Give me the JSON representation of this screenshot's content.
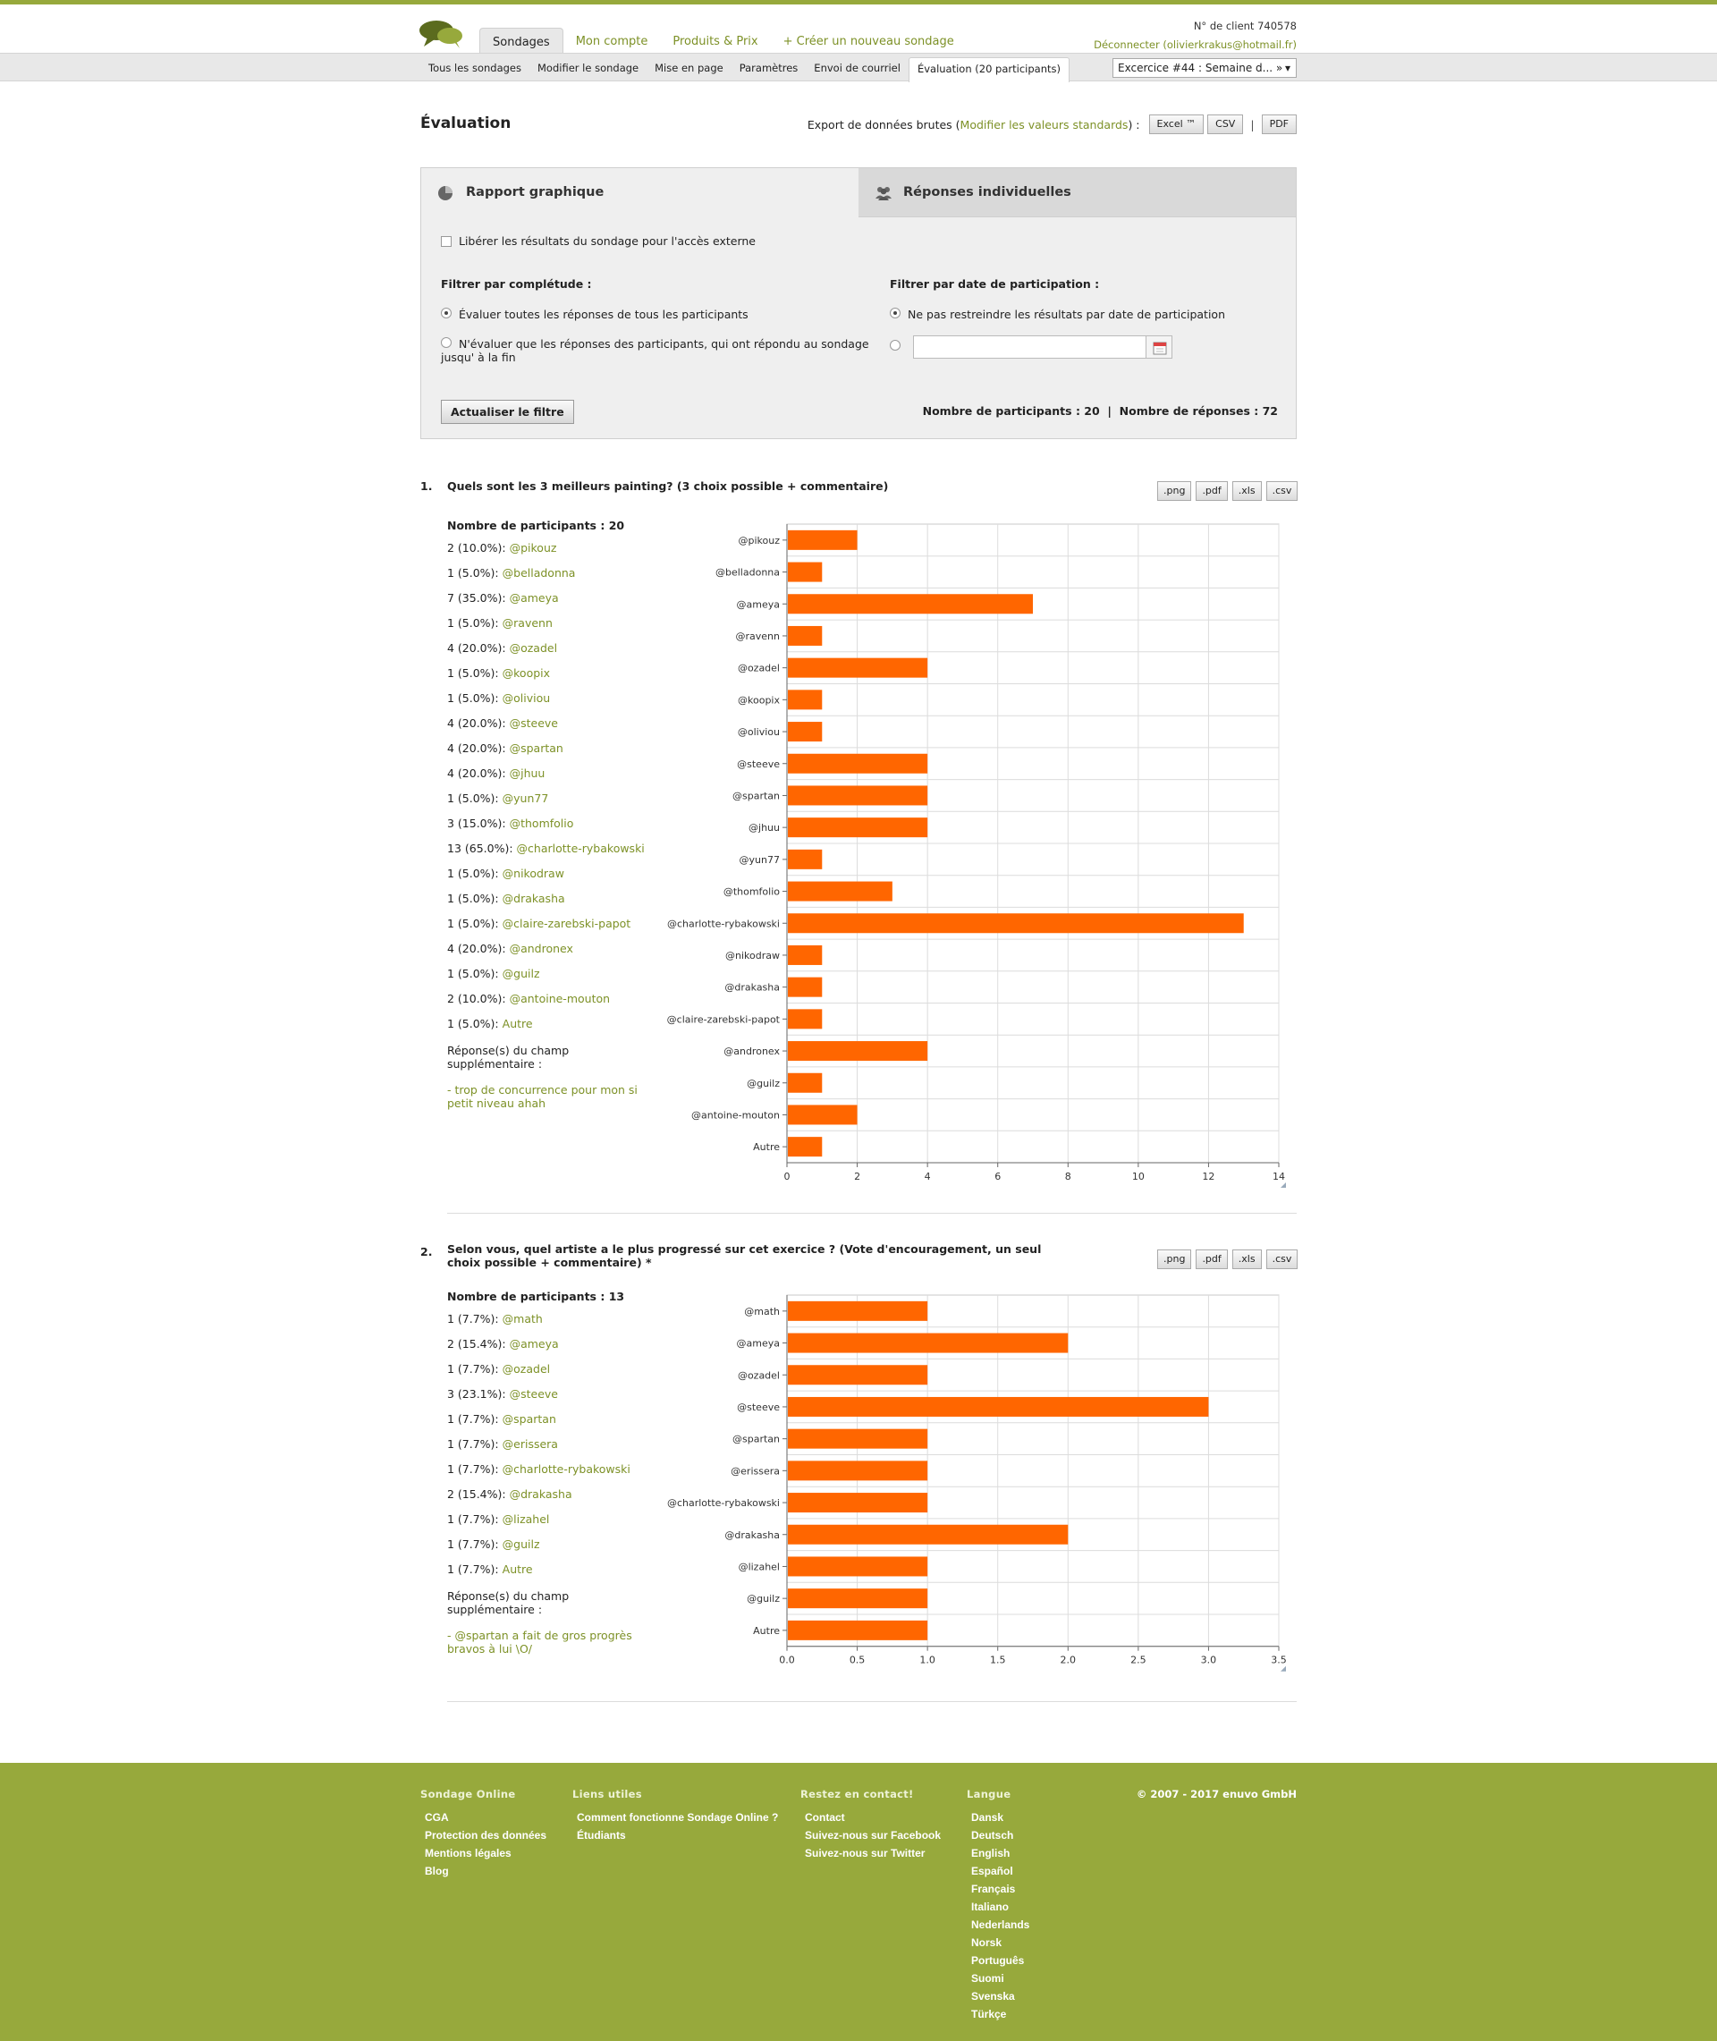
{
  "header": {
    "tabs": [
      {
        "label": "Sondages",
        "active": true
      },
      {
        "label": "Mon compte",
        "active": false
      },
      {
        "label": "Produits & Prix",
        "active": false
      },
      {
        "label": "+ Créer un nouveau sondage",
        "active": false
      }
    ],
    "client_id": "N° de client 740578",
    "logout": "Déconnecter (olivierkrakus@hotmail.fr)"
  },
  "subnav": {
    "tabs": [
      {
        "label": "Tous les sondages",
        "active": false
      },
      {
        "label": "Modifier le sondage",
        "active": false
      },
      {
        "label": "Mise en page",
        "active": false
      },
      {
        "label": "Paramètres",
        "active": false
      },
      {
        "label": "Envoi de courriel",
        "active": false
      },
      {
        "label": "Évaluation (20 participants)",
        "active": true
      }
    ],
    "survey_select": "Excercice #44 : Semaine d... »"
  },
  "page": {
    "title": "Évaluation",
    "export_label": "Export de données brutes (",
    "export_link": "Modifier les valeurs standards",
    "export_end": ") :",
    "btn_excel": "Excel ™",
    "btn_csv": "CSV",
    "btn_sep": "|",
    "btn_pdf": "PDF"
  },
  "panel": {
    "tab_graph": "Rapport graphique",
    "tab_indiv": "Réponses individuelles",
    "release_label": "Libérer les résultats du sondage pour l'accès externe",
    "filter_completion": "Filtrer par complétude :",
    "opt_all": "Évaluer toutes les réponses de tous les participants",
    "opt_complete": "N'évaluer que les réponses des participants, qui ont répondu au sondage jusqu' à la fin",
    "filter_date": "Filtrer par date de participation :",
    "opt_nodate": "Ne pas restreindre les résultats par date de participation",
    "update_btn": "Actualiser le filtre",
    "counts": "Nombre de participants : 20  |  Nombre de réponses : 72"
  },
  "download_buttons": [
    ".png",
    ".pdf",
    ".xls",
    ".csv"
  ],
  "questions": [
    {
      "num": "1.",
      "title": "Quels sont les 3 meilleurs painting? (3 choix possible + commentaire)",
      "participants": "Nombre de participants : 20",
      "rows": [
        {
          "count": "2 (10.0%):",
          "name": "@pikouz"
        },
        {
          "count": "1 (5.0%):",
          "name": "@belladonna"
        },
        {
          "count": "7 (35.0%):",
          "name": "@ameya"
        },
        {
          "count": "1 (5.0%):",
          "name": "@ravenn"
        },
        {
          "count": "4 (20.0%):",
          "name": "@ozadel"
        },
        {
          "count": "1 (5.0%):",
          "name": "@koopix"
        },
        {
          "count": "1 (5.0%):",
          "name": "@oliviou"
        },
        {
          "count": "4 (20.0%):",
          "name": "@steeve"
        },
        {
          "count": "4 (20.0%):",
          "name": "@spartan"
        },
        {
          "count": "4 (20.0%):",
          "name": "@jhuu"
        },
        {
          "count": "1 (5.0%):",
          "name": "@yun77"
        },
        {
          "count": "3 (15.0%):",
          "name": "@thomfolio"
        },
        {
          "count": "13 (65.0%):",
          "name": "@charlotte-rybakowski"
        },
        {
          "count": "1 (5.0%):",
          "name": "@nikodraw"
        },
        {
          "count": "1 (5.0%):",
          "name": "@drakasha"
        },
        {
          "count": "1 (5.0%):",
          "name": "@claire-zarebski-papot"
        },
        {
          "count": "4 (20.0%):",
          "name": "@andronex"
        },
        {
          "count": "1 (5.0%):",
          "name": "@guilz"
        },
        {
          "count": "2 (10.0%):",
          "name": "@antoine-mouton"
        },
        {
          "count": "1 (5.0%):",
          "name": "Autre"
        }
      ],
      "extra_heading": "Réponse(s) du champ supplémentaire :",
      "extra_text": "- trop de concurrence pour mon si petit niveau ahah"
    },
    {
      "num": "2.",
      "title": "Selon vous, quel artiste a le plus progressé sur cet exercice ? (Vote d'encouragement, un seul choix possible + commentaire) *",
      "participants": "Nombre de participants : 13",
      "rows": [
        {
          "count": "1 (7.7%):",
          "name": "@math"
        },
        {
          "count": "2 (15.4%):",
          "name": "@ameya"
        },
        {
          "count": "1 (7.7%):",
          "name": "@ozadel"
        },
        {
          "count": "3 (23.1%):",
          "name": "@steeve"
        },
        {
          "count": "1 (7.7%):",
          "name": "@spartan"
        },
        {
          "count": "1 (7.7%):",
          "name": "@erissera"
        },
        {
          "count": "1 (7.7%):",
          "name": "@charlotte-rybakowski"
        },
        {
          "count": "2 (15.4%):",
          "name": "@drakasha"
        },
        {
          "count": "1 (7.7%):",
          "name": "@lizahel"
        },
        {
          "count": "1 (7.7%):",
          "name": "@guilz"
        },
        {
          "count": "1 (7.7%):",
          "name": "Autre"
        }
      ],
      "extra_heading": "Réponse(s) du champ supplémentaire :",
      "extra_text": "- @spartan a fait de gros progrès bravos à lui \\O/"
    }
  ],
  "chart_data": [
    {
      "type": "bar",
      "orientation": "horizontal",
      "categories": [
        "@pikouz",
        "@belladonna",
        "@ameya",
        "@ravenn",
        "@ozadel",
        "@koopix",
        "@oliviou",
        "@steeve",
        "@spartan",
        "@jhuu",
        "@yun77",
        "@thomfolio",
        "@charlotte-rybakowski",
        "@nikodraw",
        "@drakasha",
        "@claire-zarebski-papot",
        "@andronex",
        "@guilz",
        "@antoine-mouton",
        "Autre"
      ],
      "values": [
        2,
        1,
        7,
        1,
        4,
        1,
        1,
        4,
        4,
        4,
        1,
        3,
        13,
        1,
        1,
        1,
        4,
        1,
        2,
        1
      ],
      "xlim": [
        0,
        14
      ],
      "xticks": [
        "0",
        "2",
        "4",
        "6",
        "8",
        "10",
        "12",
        "14"
      ],
      "color": "#ff6600",
      "grid": true
    },
    {
      "type": "bar",
      "orientation": "horizontal",
      "categories": [
        "@math",
        "@ameya",
        "@ozadel",
        "@steeve",
        "@spartan",
        "@erissera",
        "@charlotte-rybakowski",
        "@drakasha",
        "@lizahel",
        "@guilz",
        "Autre"
      ],
      "values": [
        1,
        2,
        1,
        3,
        1,
        1,
        1,
        2,
        1,
        1,
        1
      ],
      "xlim": [
        0,
        3.5
      ],
      "xticks": [
        "0.0",
        "0.5",
        "1.0",
        "1.5",
        "2.0",
        "2.5",
        "3.0",
        "3.5"
      ],
      "color": "#ff6600",
      "grid": true
    }
  ],
  "footer": {
    "cols": [
      {
        "heading": "Sondage Online",
        "items": [
          "CGA",
          "Protection des données",
          "Mentions légales",
          "Blog"
        ]
      },
      {
        "heading": "Liens utiles",
        "items": [
          "Comment fonctionne Sondage Online ?",
          "Étudiants"
        ]
      },
      {
        "heading": "Restez en contact!",
        "items": [
          "Contact",
          "Suivez-nous sur Facebook",
          "Suivez-nous sur Twitter"
        ]
      },
      {
        "heading": "Langue",
        "items": [
          "Dansk",
          "Deutsch",
          "English",
          "Español",
          "Français",
          "Italiano",
          "Nederlands",
          "Norsk",
          "Português",
          "Suomi",
          "Svenska",
          "Türkçe"
        ]
      }
    ],
    "copyright": "© 2007 - 2017 enuvo GmbH"
  }
}
